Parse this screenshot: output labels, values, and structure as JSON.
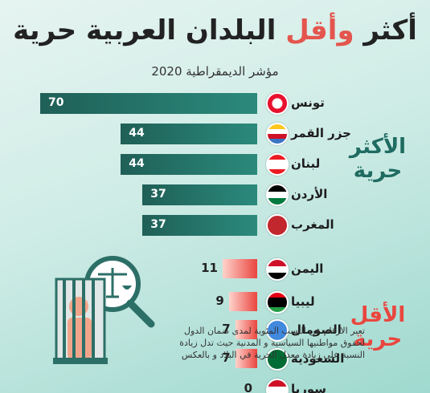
{
  "title_part1": "أكثر ",
  "title_accent": "وأقل",
  "title_part2": " البلدان العربية حرية",
  "subtitle": "مؤشر الديمقراطية 2020",
  "group_most": "الأكثر حرية",
  "group_least": "الأقل حرية",
  "note": "تعبر الارقام عن النسب المئوية لمدى ضمان الدول لحقوق مواطنيها السياسية و المدنية حيث تدل زيادة النسبة على زيادة معدل الحرية في البلاد و بالعكس",
  "colors": {
    "top_bar": "#1f5f57",
    "bottom_bar": "#e9463f",
    "accent": "#e4554d"
  },
  "chart_data": {
    "type": "bar",
    "orientation": "horizontal",
    "categories": [
      "تونس",
      "جزر القمر",
      "لبنان",
      "الأردن",
      "المغرب",
      "اليمن",
      "ليبيا",
      "الصومال",
      "السعودية",
      "سوريا"
    ],
    "values": [
      70,
      44,
      44,
      37,
      37,
      11,
      9,
      7,
      7,
      0
    ],
    "groups": [
      "most",
      "most",
      "most",
      "most",
      "most",
      "least",
      "least",
      "least",
      "least",
      "least"
    ]
  }
}
